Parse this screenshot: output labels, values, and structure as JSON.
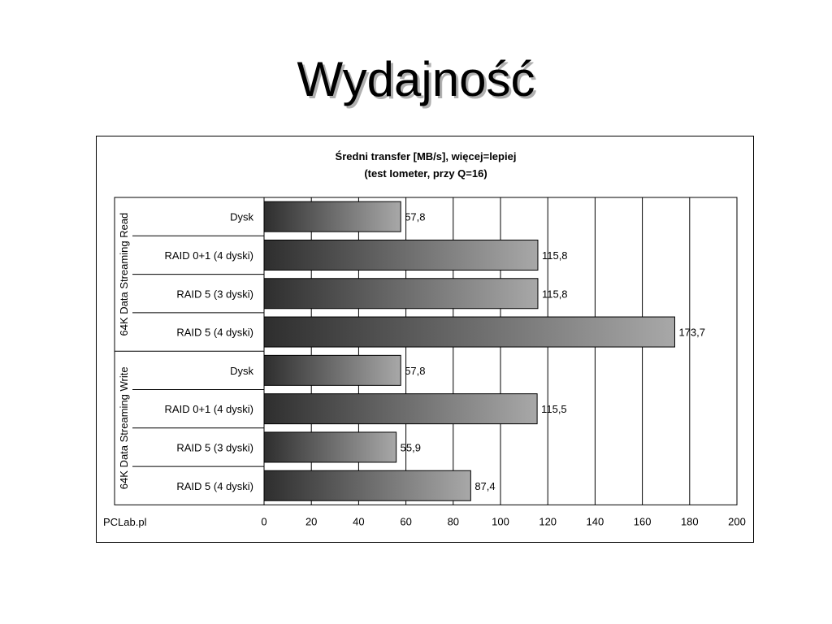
{
  "slide": {
    "title": "Wydajność"
  },
  "chart_data": {
    "type": "bar",
    "orientation": "horizontal",
    "title": [
      "Średni transfer [MB/s], więcej=lepiej",
      "(test Iometer, przy Q=16)"
    ],
    "groups": [
      {
        "name": "64K Data Streaming Read",
        "categories": [
          "Dysk",
          "RAID 0+1 (4 dyski)",
          "RAID 5 (3 dyski)",
          "RAID 5 (4 dyski)"
        ],
        "values": [
          57.8,
          115.8,
          115.8,
          173.7
        ],
        "labels": [
          "57,8",
          "115,8",
          "115,8",
          "173,7"
        ]
      },
      {
        "name": "64K Data Streaming Write",
        "categories": [
          "Dysk",
          "RAID 0+1 (4 dyski)",
          "RAID 5 (3 dyski)",
          "RAID 5 (4 dyski)"
        ],
        "values": [
          57.8,
          115.5,
          55.9,
          87.4
        ],
        "labels": [
          "57,8",
          "115,5",
          "55,9",
          "87,4"
        ]
      }
    ],
    "xlim": [
      0,
      200
    ],
    "xticks": [
      0,
      20,
      40,
      60,
      80,
      100,
      120,
      140,
      160,
      180,
      200
    ],
    "grid": true,
    "source": "PCLab.pl",
    "colors": {
      "bar_dark": "#2e2e2e",
      "bar_light": "#a8a8a8",
      "grid": "#000000"
    }
  }
}
